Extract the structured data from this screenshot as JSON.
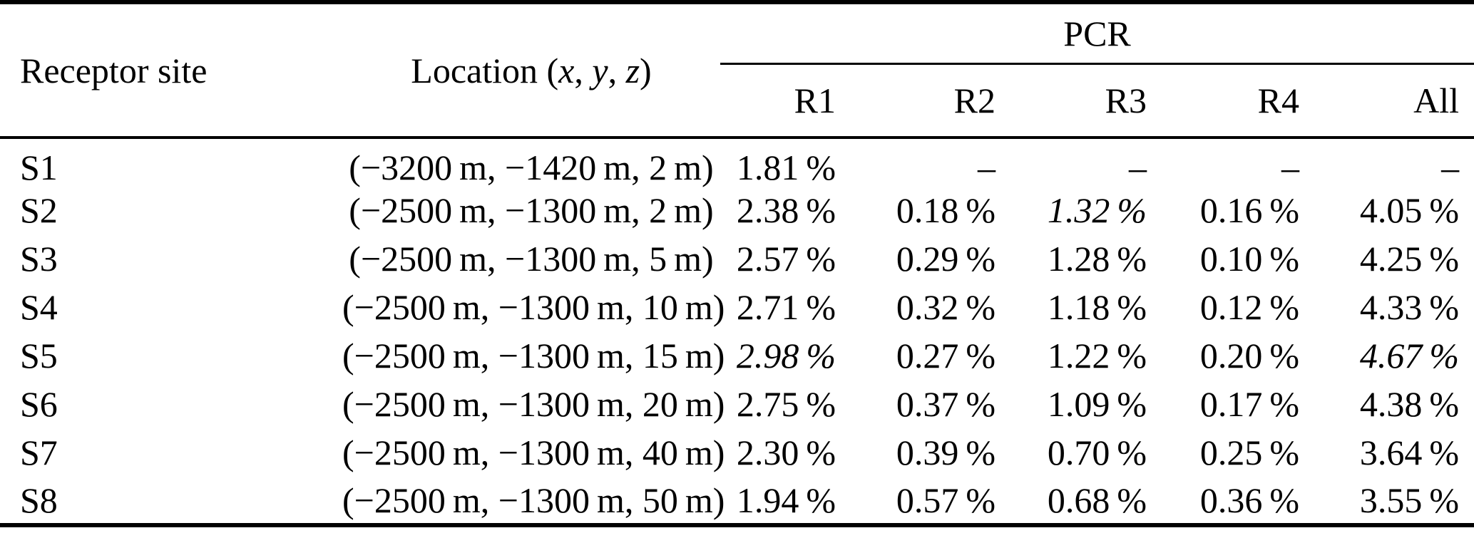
{
  "table": {
    "header": {
      "receptor_site": "Receptor site",
      "location_prefix": "Location (",
      "location_x": "x",
      "location_sep1": ", ",
      "location_y": "y",
      "location_sep2": ", ",
      "location_z": "z",
      "location_suffix": ")",
      "pcr_group": "PCR",
      "subcolumns": [
        "R1",
        "R2",
        "R3",
        "R4",
        "All"
      ]
    },
    "rows": [
      {
        "site": "S1",
        "location": "(−3200 m, −1420 m, 2 m)",
        "r1": "1.81 %",
        "r2": "–",
        "r3": "–",
        "r4": "–",
        "all": "–"
      },
      {
        "site": "S2",
        "location": "(−2500 m, −1300 m, 2 m)",
        "r1": "2.38 %",
        "r2": "0.18 %",
        "r3": "1.32 %",
        "r4": "0.16 %",
        "all": "4.05 %"
      },
      {
        "site": "S3",
        "location": "(−2500 m, −1300 m, 5 m)",
        "r1": "2.57 %",
        "r2": "0.29 %",
        "r3": "1.28 %",
        "r4": "0.10 %",
        "all": "4.25 %"
      },
      {
        "site": "S4",
        "location": "(−2500 m, −1300 m, 10 m)",
        "r1": "2.71 %",
        "r2": "0.32 %",
        "r3": "1.18 %",
        "r4": "0.12 %",
        "all": "4.33 %"
      },
      {
        "site": "S5",
        "location": "(−2500 m, −1300 m, 15 m)",
        "r1": "2.98 %",
        "r2": "0.27 %",
        "r3": "1.22 %",
        "r4": "0.20 %",
        "all": "4.67 %"
      },
      {
        "site": "S6",
        "location": "(−2500 m, −1300 m, 20 m)",
        "r1": "2.75 %",
        "r2": "0.37 %",
        "r3": "1.09 %",
        "r4": "0.17 %",
        "all": "4.38 %"
      },
      {
        "site": "S7",
        "location": "(−2500 m, −1300 m, 40 m)",
        "r1": "2.30 %",
        "r2": "0.39 %",
        "r3": "0.70 %",
        "r4": "0.25 %",
        "all": "3.64 %"
      },
      {
        "site": "S8",
        "location": "(−2500 m, −1300 m, 50 m)",
        "r1": "1.94 %",
        "r2": "0.57 %",
        "r3": "0.68 %",
        "r4": "0.36 %",
        "all": "3.55 %"
      }
    ],
    "italic_cells": [
      "table.rows.1.r3",
      "table.rows.4.r1",
      "table.rows.4.all"
    ]
  }
}
